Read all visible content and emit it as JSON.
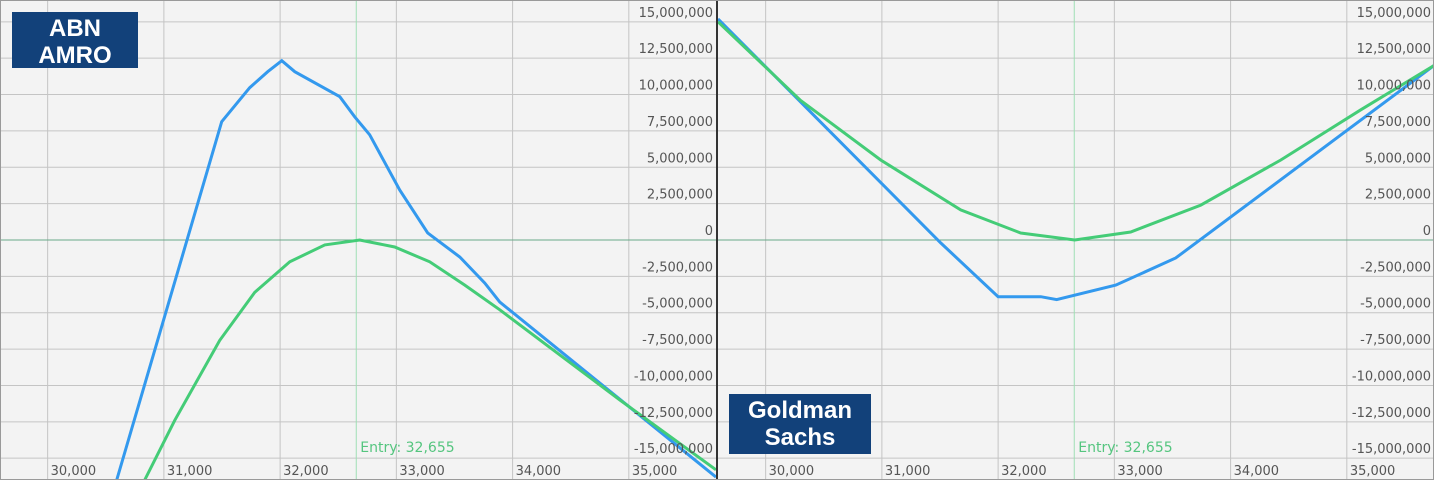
{
  "chart_data": [
    {
      "type": "line",
      "logo_lines": [
        "ABN",
        "AMRO"
      ],
      "annotation": {
        "label": "Entry: 32,655",
        "x": 32655
      },
      "xlim": [
        29590,
        35750
      ],
      "ylim": [
        -16500000,
        16500000
      ],
      "xticks": [
        {
          "value": 30000,
          "label": "30,000"
        },
        {
          "value": 31000,
          "label": "31,000"
        },
        {
          "value": 32000,
          "label": "32,000"
        },
        {
          "value": 33000,
          "label": "33,000"
        },
        {
          "value": 34000,
          "label": "34,000"
        },
        {
          "value": 35000,
          "label": "35,000"
        }
      ],
      "yticks": [
        {
          "value": 15000000,
          "label": "15,000,000"
        },
        {
          "value": 12500000,
          "label": "12,500,000"
        },
        {
          "value": 10000000,
          "label": "10,000,000"
        },
        {
          "value": 7500000,
          "label": "7,500,000"
        },
        {
          "value": 5000000,
          "label": "5,000,000"
        },
        {
          "value": 2500000,
          "label": "2,500,000"
        },
        0,
        {
          "value": -2500000,
          "label": "-2,500,000"
        },
        {
          "value": -5000000,
          "label": "-5,000,000"
        },
        {
          "value": -7500000,
          "label": "-7,500,000"
        },
        {
          "value": -10000000,
          "label": "-10,000,000"
        },
        {
          "value": -12500000,
          "label": "-12,500,000"
        },
        {
          "value": -15000000,
          "label": "-15,000,000"
        }
      ],
      "grid": true,
      "series": [
        {
          "color": "#3399ee",
          "x": [
            30594,
            31497,
            31738,
            31893,
            32014,
            32126,
            32513,
            32642,
            32771,
            33029,
            33270,
            33546,
            33761,
            33890,
            35750
          ],
          "values": [
            -16500000,
            8130000,
            10470000,
            11570000,
            12330000,
            11570000,
            9850000,
            8470000,
            7230000,
            3440000,
            480000,
            -1170000,
            -2960000,
            -4270000,
            -16300000
          ]
        },
        {
          "color": "#44cc77",
          "x": [
            30835,
            31093,
            31480,
            31781,
            32083,
            32384,
            32685,
            32986,
            33287,
            33589,
            33890,
            34406,
            34923,
            35750
          ],
          "values": [
            -16500000,
            -12400000,
            -6900000,
            -3600000,
            -1500000,
            -340000,
            0,
            -480000,
            -1500000,
            -3100000,
            -4800000,
            -7900000,
            -11000000,
            -15800000
          ]
        }
      ]
    },
    {
      "type": "line",
      "logo_lines": [
        "Goldman",
        "Sachs"
      ],
      "annotation": {
        "label": "Entry: 32,655",
        "x": 32655
      },
      "xlim": [
        29590,
        35750
      ],
      "ylim": [
        -16500000,
        16500000
      ],
      "xticks": [
        {
          "value": 30000,
          "label": "30,000"
        },
        {
          "value": 31000,
          "label": "31,000"
        },
        {
          "value": 32000,
          "label": "32,000"
        },
        {
          "value": 33000,
          "label": "33,000"
        },
        {
          "value": 34000,
          "label": "34,000"
        },
        {
          "value": 35000,
          "label": "35,000"
        }
      ],
      "yticks": [
        {
          "value": 15000000,
          "label": "15,000,000"
        },
        {
          "value": 12500000,
          "label": "12,500,000"
        },
        {
          "value": 10000000,
          "label": "10,000,000"
        },
        {
          "value": 7500000,
          "label": "7,500,000"
        },
        {
          "value": 5000000,
          "label": "5,000,000"
        },
        {
          "value": 2500000,
          "label": "2,500,000"
        },
        0,
        {
          "value": -2500000,
          "label": "-2,500,000"
        },
        {
          "value": -5000000,
          "label": "-5,000,000"
        },
        {
          "value": -7500000,
          "label": "-7,500,000"
        },
        {
          "value": -10000000,
          "label": "-10,000,000"
        },
        {
          "value": -12500000,
          "label": "-12,500,000"
        },
        {
          "value": -15000000,
          "label": "-15,000,000"
        }
      ],
      "grid": true,
      "series": [
        {
          "color": "#3399ee",
          "x": [
            29590,
            31506,
            32000,
            32367,
            32504,
            33012,
            33528,
            35750
          ],
          "values": [
            15200000,
            -200000,
            -3900000,
            -3900000,
            -4100000,
            -3100000,
            -1240000,
            12000000
          ]
        },
        {
          "color": "#44cc77",
          "x": [
            29590,
            30301,
            30990,
            31678,
            32194,
            32659,
            33141,
            33744,
            34432,
            35120,
            35750
          ],
          "values": [
            15000000,
            9600000,
            5500000,
            2070000,
            480000,
            0,
            550000,
            2400000,
            5500000,
            8950000,
            12000000
          ]
        }
      ]
    }
  ]
}
